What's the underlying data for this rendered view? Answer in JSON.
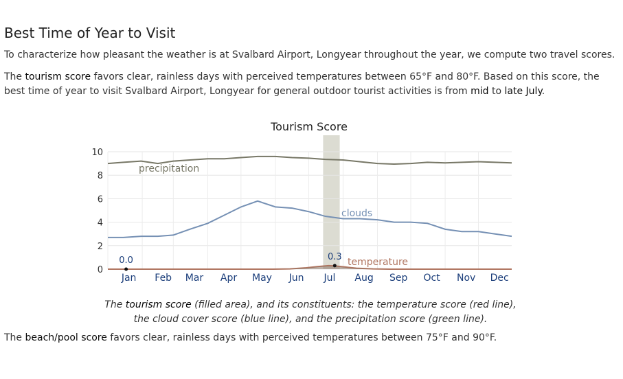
{
  "section": {
    "title": "Best Time of Year to Visit",
    "intro": "To characterize how pleasant the weather is at Svalbard Airport, Longyear throughout the year, we compute two travel scores.",
    "tourism_p": {
      "t1": "The ",
      "link": "tourism score",
      "t2": " favors clear, rainless days with perceived temperatures between 65°F and 80°F. Based on this score, the best time of year to visit Svalbard Airport, Longyear for general outdoor tourist activities is from ",
      "mid": "mid",
      "t3": " to ",
      "late": "late July",
      "t4": "."
    },
    "caption": {
      "c1": "The ",
      "c2": "tourism score",
      "c3": " (filled area), and its constituents: the temperature score (red line), the cloud cover score (blue line), and the precipitation score (green line)."
    },
    "beach_p": {
      "t1": "The ",
      "link": "beach/pool score",
      "t2": " favors clear, rainless days with perceived temperatures between 75°F and 90°F."
    }
  },
  "chart_data": {
    "type": "line",
    "title": "Tourism Score",
    "months": [
      "Jan",
      "Feb",
      "Mar",
      "Apr",
      "May",
      "Jun",
      "Jul",
      "Aug",
      "Sep",
      "Oct",
      "Nov",
      "Dec"
    ],
    "ylim": [
      0,
      10
    ],
    "yticks": [
      "0",
      "2",
      "4",
      "6",
      "8",
      "10"
    ],
    "grid": true,
    "highlight_range_days": [
      195,
      210
    ],
    "series": [
      {
        "name": "precipitation",
        "color": "#777766",
        "x": [
          1,
          15,
          31,
          46,
          60,
          75,
          91,
          106,
          121,
          136,
          152,
          167,
          182,
          197,
          213,
          228,
          244,
          259,
          274,
          289,
          305,
          320,
          335,
          350,
          365
        ],
        "values": [
          9.0,
          9.1,
          9.2,
          9.0,
          9.2,
          9.3,
          9.4,
          9.4,
          9.5,
          9.6,
          9.6,
          9.5,
          9.45,
          9.35,
          9.3,
          9.15,
          9.0,
          8.95,
          9.0,
          9.1,
          9.05,
          9.1,
          9.15,
          9.1,
          9.05
        ]
      },
      {
        "name": "clouds",
        "color": "#7590b4",
        "x": [
          1,
          15,
          31,
          46,
          60,
          75,
          91,
          106,
          121,
          136,
          152,
          167,
          182,
          197,
          213,
          228,
          244,
          259,
          274,
          289,
          305,
          320,
          335,
          350,
          365
        ],
        "values": [
          2.7,
          2.7,
          2.8,
          2.8,
          2.9,
          3.4,
          3.9,
          4.6,
          5.3,
          5.8,
          5.3,
          5.2,
          4.9,
          4.5,
          4.3,
          4.3,
          4.2,
          4.0,
          4.0,
          3.9,
          3.4,
          3.2,
          3.2,
          3.0,
          2.8
        ]
      },
      {
        "name": "temperature",
        "color": "#b07560",
        "x": [
          1,
          150,
          165,
          180,
          190,
          200,
          205,
          215,
          225,
          240,
          255,
          365
        ],
        "values": [
          0.0,
          0.0,
          0.02,
          0.12,
          0.22,
          0.3,
          0.28,
          0.18,
          0.08,
          0.02,
          0.0,
          0.0
        ]
      },
      {
        "name": "tourism score",
        "type": "area",
        "color": "#8a7263",
        "x": [
          1,
          150,
          165,
          180,
          190,
          200,
          205,
          215,
          225,
          240,
          255,
          365
        ],
        "values": [
          0.0,
          0.0,
          0.02,
          0.12,
          0.2,
          0.28,
          0.26,
          0.16,
          0.07,
          0.02,
          0.0,
          0.0
        ]
      }
    ],
    "annotations": [
      {
        "label": "0.0",
        "x": 15,
        "value": 0.0
      },
      {
        "label": "0.3",
        "x": 203,
        "value": 0.3
      }
    ]
  }
}
